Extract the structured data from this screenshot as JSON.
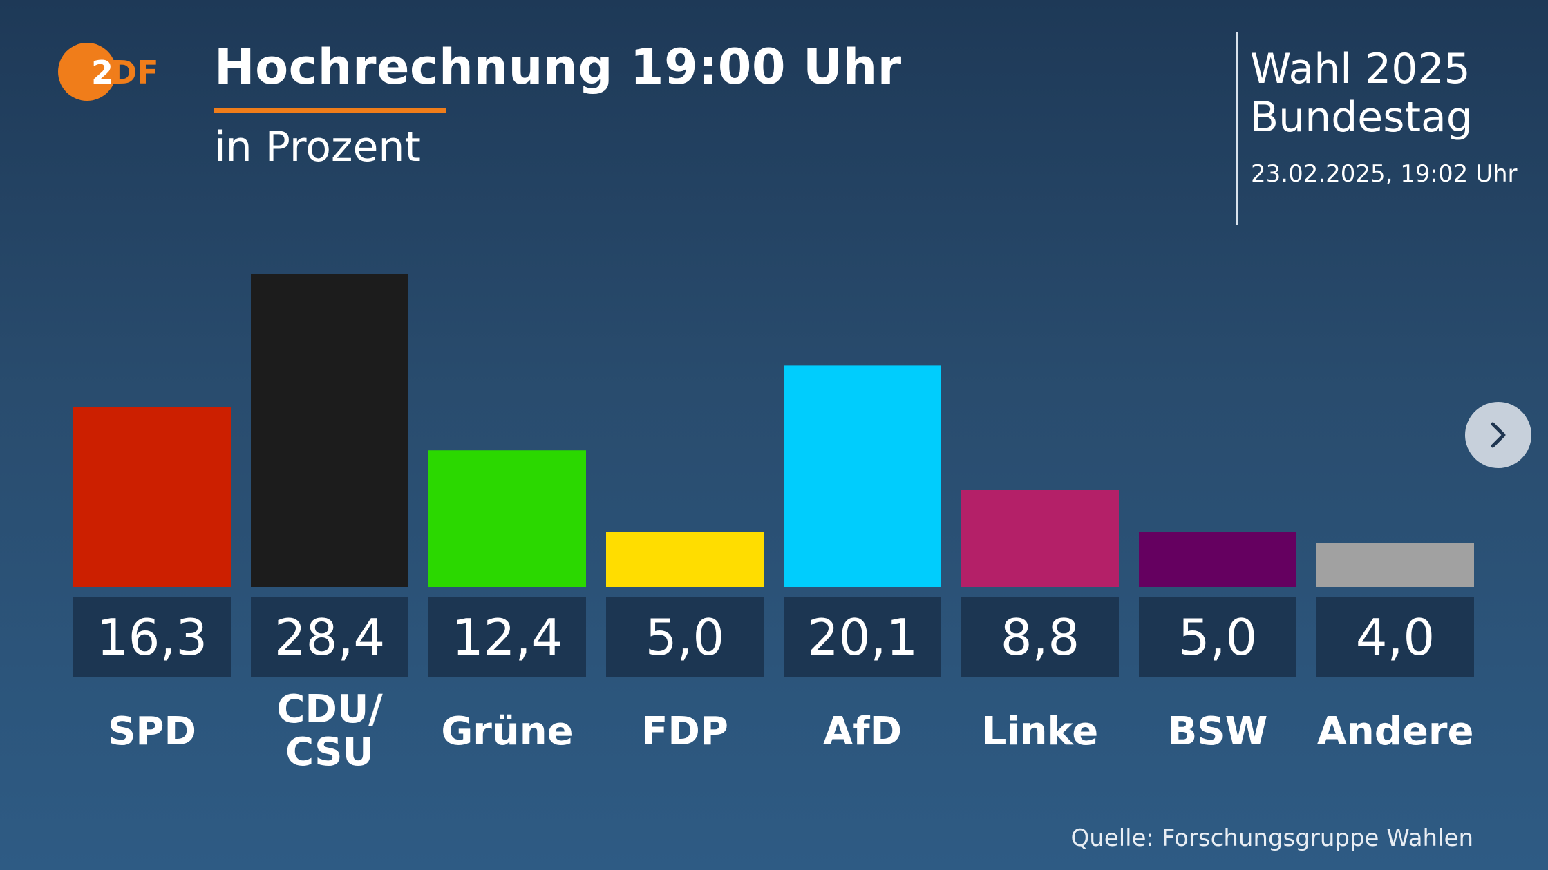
{
  "logo": {
    "text": "ZDF",
    "icon": "zdf-logo-icon",
    "color": "#f07d1a"
  },
  "header": {
    "title": "Hochrechnung 19:00 Uhr",
    "subtitle": "in Prozent",
    "accent_color": "#f07d1a"
  },
  "info": {
    "line1": "Wahl 2025",
    "line2": "Bundestag",
    "date": "23.02.2025, 19:02 Uhr"
  },
  "navigation": {
    "next_icon": "chevron-right-icon"
  },
  "source": "Quelle: Forschungsgruppe Wahlen",
  "chart_data": {
    "type": "bar",
    "title": "Hochrechnung 19:00 Uhr",
    "subtitle": "in Prozent",
    "xlabel": "",
    "ylabel": "",
    "ylim": [
      0,
      28.4
    ],
    "grid": false,
    "legend": "none",
    "categories": [
      "SPD",
      "CDU/\nCSU",
      "Grüne",
      "FDP",
      "AfD",
      "Linke",
      "BSW",
      "Andere"
    ],
    "values": [
      16.3,
      28.4,
      12.4,
      5.0,
      20.1,
      8.8,
      5.0,
      4.0
    ],
    "value_labels": [
      "16,3",
      "28,4",
      "12,4",
      "5,0",
      "20,1",
      "8,8",
      "5,0",
      "4,0"
    ],
    "colors": [
      "#cc1f00",
      "#1c1c1c",
      "#2bd800",
      "#ffdd00",
      "#00cdfd",
      "#b42068",
      "#650060",
      "#a1a1a1"
    ]
  }
}
